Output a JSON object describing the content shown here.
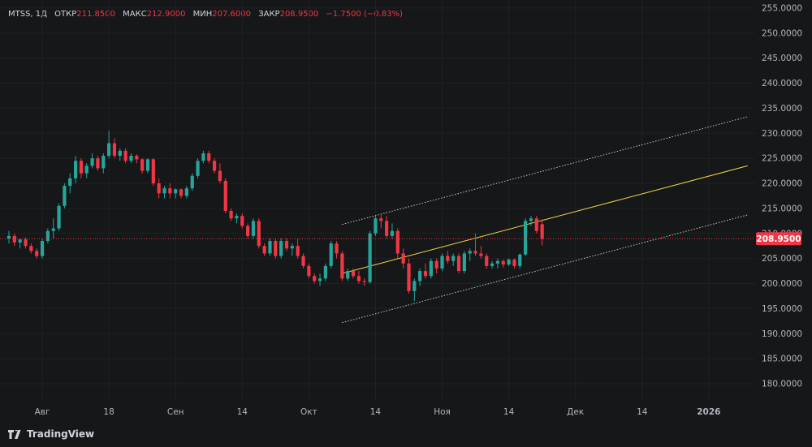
{
  "header": {
    "symbol": "MTSS, 1Д",
    "open_label": "ОТКР",
    "open_value": "211.8500",
    "high_label": "МАКС",
    "high_value": "212.9000",
    "low_label": "МИН",
    "low_value": "207.6000",
    "close_label": "ЗАКР",
    "close_value": "208.9500",
    "change": "−1.7500 (−0.83%)"
  },
  "branding": {
    "name": "TradingView",
    "icon": "tradingview-logo-icon"
  },
  "colors": {
    "background": "#161719",
    "up": "#26a69a",
    "down": "#f23645",
    "channel_mid": "#f5d547",
    "channel_band": "#c8c8c8",
    "price_line": "#f23645"
  },
  "chart_data": {
    "type": "candlestick",
    "symbol": "MTSS",
    "interval": "1Д",
    "last_price_label": "208.9500",
    "last_price": 208.95,
    "y_axis": {
      "min": 176.6,
      "max": 256.6,
      "ticks": [
        180,
        185,
        190,
        195,
        200,
        205,
        210,
        215,
        220,
        225,
        230,
        235,
        240,
        245,
        250,
        255
      ],
      "tick_labels": [
        "180.0000",
        "185.0000",
        "190.0000",
        "195.0000",
        "200.0000",
        "205.0000",
        "210.0000",
        "215.0000",
        "220.0000",
        "225.0000",
        "230.0000",
        "235.0000",
        "240.0000",
        "245.0000",
        "250.0000",
        "255.0000"
      ]
    },
    "x_axis": {
      "labels": [
        {
          "text": "Авг",
          "day": 6
        },
        {
          "text": "18",
          "day": 18
        },
        {
          "text": "Сен",
          "day": 30
        },
        {
          "text": "14",
          "day": 42
        },
        {
          "text": "Окт",
          "day": 54
        },
        {
          "text": "14",
          "day": 66
        },
        {
          "text": "Ноя",
          "day": 78
        },
        {
          "text": "14",
          "day": 90
        },
        {
          "text": "Дек",
          "day": 102
        },
        {
          "text": "14",
          "day": 114
        },
        {
          "text": "2026",
          "day": 126
        }
      ],
      "bold_labels": [
        "2026"
      ],
      "total_days": 133
    },
    "candles": [
      [
        209,
        210.5,
        208,
        209.5
      ],
      [
        209.5,
        210,
        207.5,
        208.2
      ],
      [
        208.2,
        209,
        207,
        208.8
      ],
      [
        208.8,
        209.2,
        207,
        207.5
      ],
      [
        207.5,
        208,
        206,
        206.5
      ],
      [
        206.5,
        207,
        205,
        205.5
      ],
      [
        205.5,
        209,
        205,
        208.5
      ],
      [
        208.5,
        211,
        208,
        210.5
      ],
      [
        210.5,
        213,
        209,
        211
      ],
      [
        211,
        216,
        210.5,
        215.5
      ],
      [
        215.5,
        220,
        215,
        219.5
      ],
      [
        219.5,
        222,
        218,
        221
      ],
      [
        221,
        225.5,
        220,
        224.5
      ],
      [
        224.5,
        225,
        221,
        222
      ],
      [
        222,
        224,
        221,
        223.5
      ],
      [
        223.5,
        226,
        223,
        225
      ],
      [
        225,
        225.5,
        222.5,
        223
      ],
      [
        223,
        226,
        222,
        225.5
      ],
      [
        225.5,
        230.5,
        225,
        228
      ],
      [
        228,
        229,
        225,
        225.5
      ],
      [
        225.5,
        227,
        224.5,
        226.5
      ],
      [
        226.5,
        227,
        224,
        224.5
      ],
      [
        224.5,
        226,
        224,
        225.5
      ],
      [
        225.5,
        225.8,
        224,
        224.8
      ],
      [
        224.8,
        225,
        222,
        222.5
      ],
      [
        222.5,
        225,
        222,
        224.8
      ],
      [
        224.8,
        225,
        219.5,
        220
      ],
      [
        220,
        221,
        217,
        218
      ],
      [
        218,
        219.5,
        217,
        219
      ],
      [
        219,
        220,
        217,
        218
      ],
      [
        218,
        219,
        217,
        218.8
      ],
      [
        218.8,
        219,
        217,
        217.5
      ],
      [
        217.5,
        219.5,
        217,
        219
      ],
      [
        219,
        222,
        218.5,
        221.5
      ],
      [
        221.5,
        225,
        221,
        224.5
      ],
      [
        224.5,
        226.5,
        224,
        226
      ],
      [
        226,
        226.5,
        224,
        224.5
      ],
      [
        224.5,
        225,
        222,
        222.5
      ],
      [
        222.5,
        224,
        220,
        220.5
      ],
      [
        220.5,
        221,
        214,
        214.5
      ],
      [
        214.5,
        215,
        212.5,
        213
      ],
      [
        213,
        214,
        212,
        213.5
      ],
      [
        213.5,
        214,
        211,
        211.5
      ],
      [
        211.5,
        212,
        209,
        209.5
      ],
      [
        209.5,
        213,
        209,
        212.5
      ],
      [
        212.5,
        213,
        207,
        207.5
      ],
      [
        207.5,
        208,
        205.5,
        206
      ],
      [
        206,
        209,
        205.5,
        208.5
      ],
      [
        208.5,
        209,
        205,
        205.5
      ],
      [
        205.5,
        209,
        205,
        208.5
      ],
      [
        208.5,
        209,
        206.5,
        207
      ],
      [
        207,
        208,
        205.5,
        207.5
      ],
      [
        207.5,
        209,
        205,
        205.5
      ],
      [
        205.5,
        206,
        203,
        203.5
      ],
      [
        203.5,
        204,
        201,
        201.5
      ],
      [
        201.5,
        202,
        200,
        200.5
      ],
      [
        200.5,
        202,
        199.5,
        201
      ],
      [
        201,
        204,
        200.5,
        203.5
      ],
      [
        203.5,
        208.5,
        203,
        208
      ],
      [
        208,
        208.5,
        205,
        206
      ],
      [
        206,
        206.5,
        200.5,
        201
      ],
      [
        201,
        203,
        200.5,
        202.5
      ],
      [
        202.5,
        203,
        201,
        201.5
      ],
      [
        201.5,
        202.5,
        200,
        200.5
      ],
      [
        200.5,
        201,
        199.5,
        200.3
      ],
      [
        200.3,
        210.5,
        200,
        210
      ],
      [
        210,
        213.5,
        209.5,
        213
      ],
      [
        213,
        214,
        211,
        212.5
      ],
      [
        212.5,
        213.5,
        209,
        209.5
      ],
      [
        209.5,
        212,
        209,
        210.5
      ],
      [
        210.5,
        211,
        205,
        206
      ],
      [
        206,
        207,
        203,
        204
      ],
      [
        204,
        205,
        198,
        198.5
      ],
      [
        198.5,
        201,
        196.5,
        200.5
      ],
      [
        200.5,
        203,
        199.5,
        202.5
      ],
      [
        202.5,
        204,
        201,
        201.5
      ],
      [
        201.5,
        205,
        201,
        204.5
      ],
      [
        204.5,
        205,
        202,
        203
      ],
      [
        203,
        206,
        202.5,
        205.5
      ],
      [
        205.5,
        206.5,
        204,
        204.5
      ],
      [
        204.5,
        206,
        203.5,
        205.5
      ],
      [
        205.5,
        206,
        202,
        202.5
      ],
      [
        202.5,
        206.5,
        202,
        206
      ],
      [
        206,
        207,
        204.5,
        206.5
      ],
      [
        206.5,
        210,
        205.5,
        206
      ],
      [
        206,
        207.5,
        205,
        205.5
      ],
      [
        205.5,
        206,
        203,
        203.5
      ],
      [
        203.5,
        204.5,
        203,
        204
      ],
      [
        204,
        205,
        203,
        204.5
      ],
      [
        204.5,
        204.8,
        203.2,
        203.8
      ],
      [
        203.8,
        205,
        203.5,
        204.8
      ],
      [
        204.8,
        205,
        203,
        203.5
      ],
      [
        203.5,
        206,
        203,
        205.8
      ],
      [
        205.8,
        213,
        205.5,
        212.5
      ],
      [
        212.5,
        213.5,
        211.5,
        213
      ],
      [
        213,
        213.5,
        210,
        210.5
      ],
      [
        211.85,
        212.9,
        207.6,
        208.95
      ]
    ],
    "channel": {
      "mid": {
        "day_start": 60,
        "price_start": 202.0,
        "day_end": 133,
        "price_end": 223.5
      },
      "upper": {
        "day_start": 60,
        "price_start": 211.8,
        "day_end": 133,
        "price_end": 233.3
      },
      "lower": {
        "day_start": 60,
        "price_start": 192.2,
        "day_end": 133,
        "price_end": 213.7
      }
    }
  }
}
